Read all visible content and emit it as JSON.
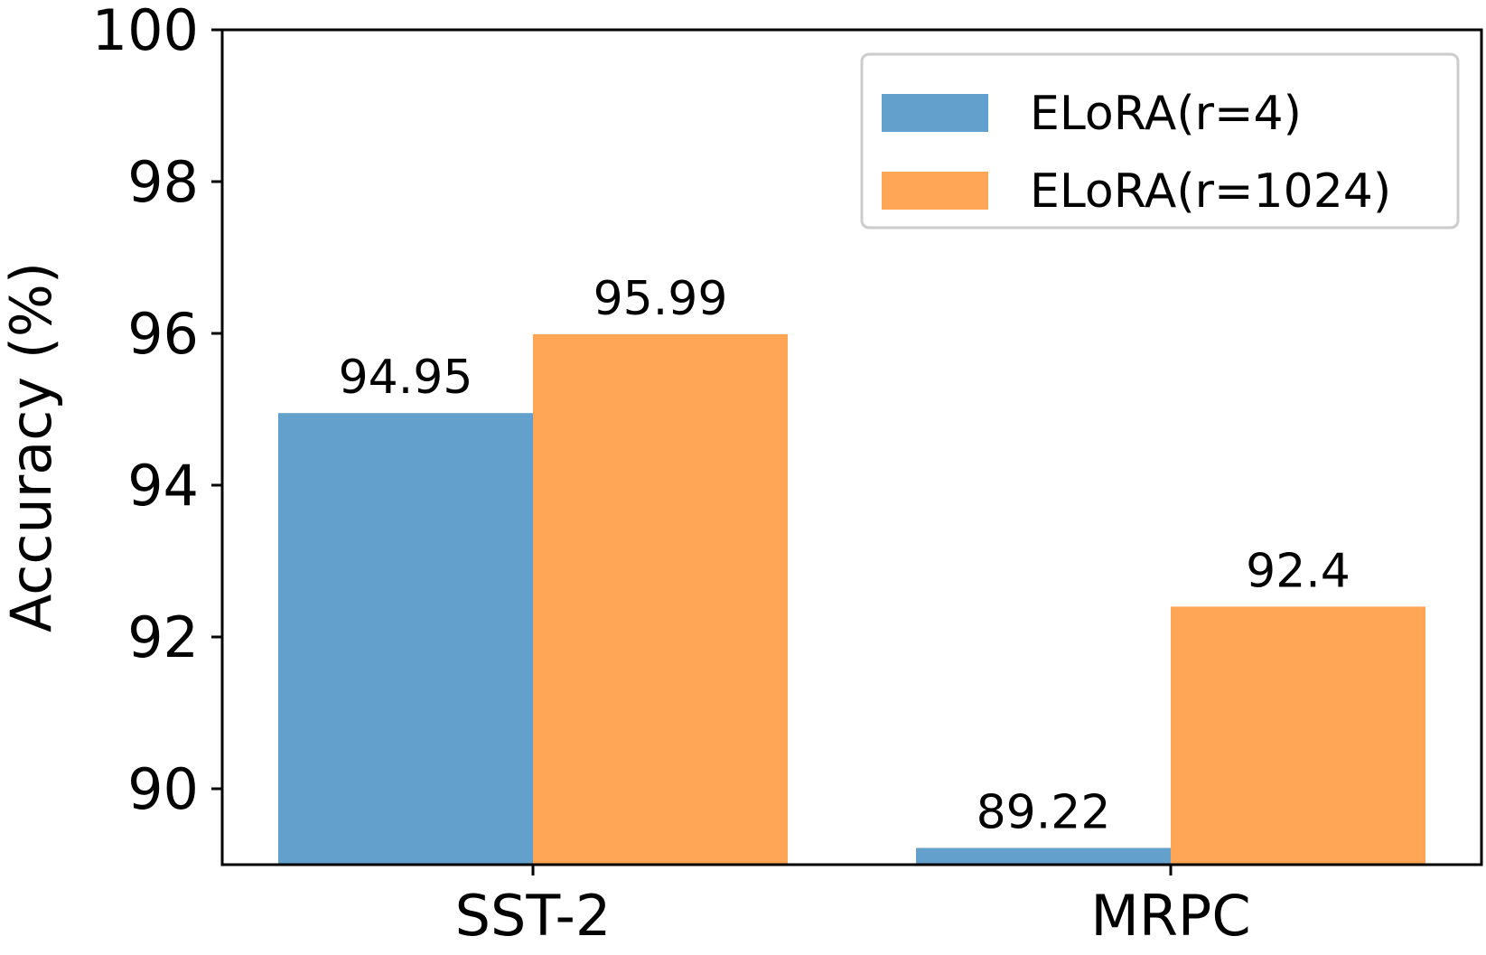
{
  "chart_data": {
    "type": "bar",
    "categories": [
      "SST-2",
      "MRPC"
    ],
    "series": [
      {
        "name": "ELoRA(r=4)",
        "values": [
          94.95,
          89.22
        ],
        "labels": [
          "94.95",
          "89.22"
        ],
        "color": "#63a0cb"
      },
      {
        "name": "ELoRA(r=1024)",
        "values": [
          95.99,
          92.4
        ],
        "labels": [
          "95.99",
          "92.4"
        ],
        "color": "#ffa556"
      }
    ],
    "title": "",
    "xlabel": "",
    "ylabel": "Accuracy (%)",
    "ylim": [
      89,
      100
    ],
    "yticks": [
      90,
      92,
      94,
      96,
      98,
      100
    ],
    "ytick_labels": [
      "90",
      "92",
      "94",
      "96",
      "98",
      "100"
    ],
    "grid": false,
    "legend_position": "top-right"
  }
}
